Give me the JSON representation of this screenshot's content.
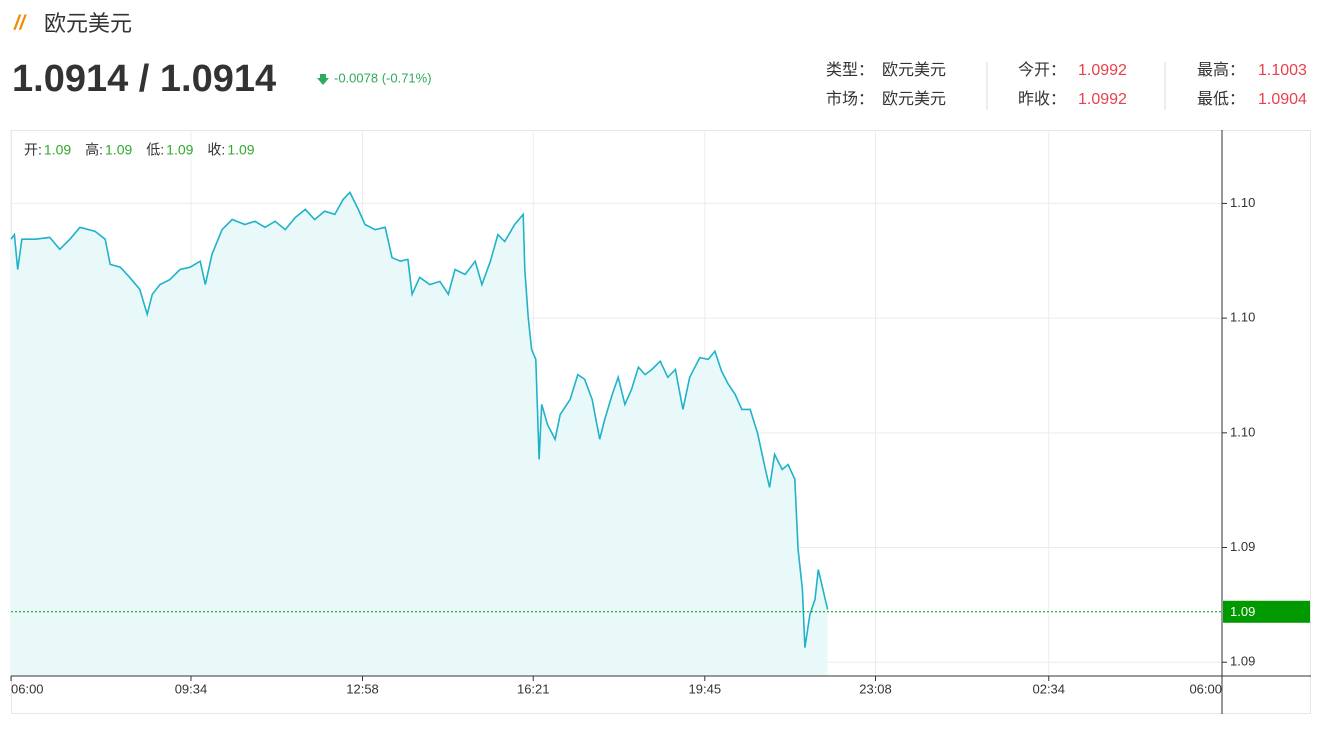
{
  "header": {
    "title": "欧元美元",
    "price": "1.0914 / 1.0914",
    "change": "-0.0078 (-0.71%)",
    "info": [
      [
        {
          "label": "类型：",
          "value": "欧元美元"
        },
        {
          "label": "今开：",
          "value": "1.0992"
        },
        {
          "label": "最高：",
          "value": "1.1003"
        }
      ],
      [
        {
          "label": "市场：",
          "value": "欧元美元"
        },
        {
          "label": "昨收：",
          "value": "1.0992"
        },
        {
          "label": "最低：",
          "value": "1.0904"
        }
      ]
    ]
  },
  "chart_data": {
    "type": "line",
    "ohlc": [
      {
        "label": "开:",
        "value": "1.09"
      },
      {
        "label": "高:",
        "value": "1.09"
      },
      {
        "label": "低:",
        "value": "1.09"
      },
      {
        "label": "收:",
        "value": "1.09"
      }
    ],
    "xlim": [
      0,
      1440
    ],
    "xticks": [
      {
        "value": 0,
        "label": "06:00"
      },
      {
        "value": 214,
        "label": "09:34"
      },
      {
        "value": 418,
        "label": "12:58"
      },
      {
        "value": 621,
        "label": "16:21"
      },
      {
        "value": 825,
        "label": "19:45"
      },
      {
        "value": 1028,
        "label": "23:08"
      },
      {
        "value": 1234,
        "label": "02:34"
      },
      {
        "value": 1440,
        "label": "06:00"
      }
    ],
    "ylim": [
      1.0897,
      1.1016
    ],
    "yticks": [
      {
        "value": 1.1,
        "label": "1.10"
      },
      {
        "value": 1.0975,
        "label": "1.10"
      },
      {
        "value": 1.095,
        "label": "1.10"
      },
      {
        "value": 1.0925,
        "label": "1.09"
      },
      {
        "value": 1.09,
        "label": "1.09"
      }
    ],
    "grid": true,
    "price_line": {
      "value": 1.0911,
      "label": "1.09",
      "color": "#009900"
    },
    "series": [
      {
        "color": "#1fb3c9",
        "fill": "#e9f9fa",
        "x": [
          0,
          4,
          8,
          13,
          29,
          46,
          58,
          70,
          82,
          100,
          112,
          118,
          130,
          141,
          153,
          162,
          168,
          177,
          189,
          201,
          213,
          225,
          231,
          239,
          251,
          263,
          278,
          290,
          302,
          314,
          326,
          338,
          350,
          361,
          373,
          385,
          395,
          403,
          413,
          421,
          433,
          445,
          453,
          463,
          472,
          477,
          486,
          498,
          510,
          520,
          528,
          540,
          552,
          560,
          570,
          579,
          587,
          599,
          609,
          611,
          615,
          619,
          624,
          628,
          631,
          638,
          647,
          653,
          665,
          674,
          682,
          691,
          700,
          706,
          715,
          722,
          730,
          738,
          746,
          754,
          762,
          772,
          781,
          790,
          799,
          807,
          819,
          829,
          837,
          845,
          853,
          861,
          869,
          879,
          888,
          897,
          902,
          908,
          917,
          924,
          932,
          936,
          941,
          944,
          950,
          956,
          960,
          964,
          971
        ],
        "values": [
          1.09922,
          1.09932,
          1.09856,
          1.09922,
          1.09922,
          1.09926,
          1.099,
          1.09922,
          1.09948,
          1.09939,
          1.09922,
          1.09867,
          1.09861,
          1.09839,
          1.09813,
          1.09758,
          1.09802,
          1.09823,
          1.09834,
          1.09856,
          1.09861,
          1.09874,
          1.09823,
          1.09889,
          1.09943,
          1.09965,
          1.09954,
          1.09961,
          1.09948,
          1.09961,
          1.09943,
          1.09969,
          1.09987,
          1.09965,
          1.09983,
          1.09976,
          1.10009,
          1.10024,
          1.09987,
          1.09954,
          1.09943,
          1.09948,
          1.09882,
          1.09874,
          1.09878,
          1.09802,
          1.09839,
          1.09823,
          1.0983,
          1.09802,
          1.09856,
          1.09845,
          1.09874,
          1.09823,
          1.09874,
          1.09932,
          1.09917,
          1.09954,
          1.09976,
          1.09856,
          1.09752,
          1.09682,
          1.0966,
          1.09442,
          1.09562,
          1.09518,
          1.09486,
          1.0954,
          1.09573,
          1.09627,
          1.09617,
          1.09573,
          1.09486,
          1.09529,
          1.09584,
          1.09621,
          1.09562,
          1.09595,
          1.09643,
          1.09627,
          1.09638,
          1.09656,
          1.09621,
          1.09638,
          1.09551,
          1.09621,
          1.09664,
          1.0966,
          1.09678,
          1.09634,
          1.09606,
          1.09584,
          1.09551,
          1.09551,
          1.09497,
          1.0942,
          1.09381,
          1.09453,
          1.0942,
          1.09431,
          1.09399,
          1.09246,
          1.09159,
          1.09032,
          1.09104,
          1.09137,
          1.09202,
          1.0917,
          1.09115
        ]
      }
    ]
  }
}
